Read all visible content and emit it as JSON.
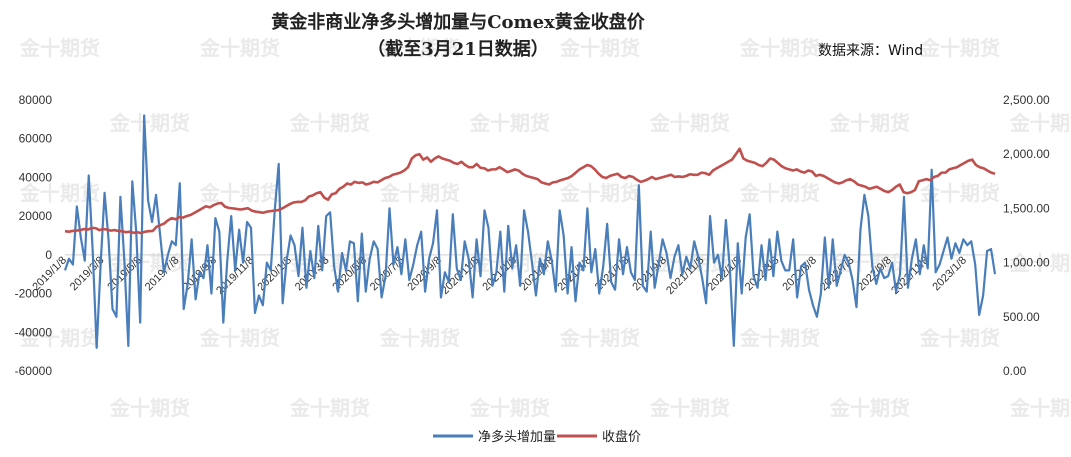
{
  "chart_data": {
    "type": "line",
    "title": "黄金非商业净多头增加量与Comex黄金收盘价",
    "subtitle": "（截至3月21日数据）",
    "source": "数据来源：Wind",
    "watermark": "金十期货",
    "y_left": {
      "min": -60000,
      "max": 80000,
      "step": 20000,
      "ticks": [
        "80000",
        "60000",
        "40000",
        "20000",
        "0",
        "-20000",
        "-40000",
        "-60000"
      ]
    },
    "y_right": {
      "min": 0,
      "max": 2500,
      "step": 500,
      "ticks": [
        "2,500.00",
        "2,000.00",
        "1,500.00",
        "1,000.00",
        "500.00",
        "0.00"
      ]
    },
    "x_ticks": [
      "2019/1/8",
      "2019/3/8",
      "2019/5/8",
      "2019/7/8",
      "2019/9/8",
      "2019/11/8",
      "2020/1/8",
      "2020/3/8",
      "2020/5/8",
      "2020/7/8",
      "2020/9/8",
      "2020/11/8",
      "2021/1/8",
      "2021/3/8",
      "2021/5/8",
      "2021/7/8",
      "2021/9/8",
      "2021/11/8",
      "2022/1/8",
      "2022/3/8",
      "2022/5/8",
      "2022/7/8",
      "2022/9/8",
      "2022/11/8",
      "2023/1/8"
    ],
    "legend_position": "bottom",
    "grid": false,
    "series": [
      {
        "name": "净多头增加量",
        "axis": "left",
        "color": "#4a7ebb",
        "values": [
          -8000,
          -2000,
          -5000,
          25000,
          9000,
          -3000,
          41000,
          2000,
          -48000,
          -5000,
          32000,
          8000,
          -28000,
          -32000,
          30000,
          -3000,
          -47000,
          38000,
          12000,
          -35000,
          72000,
          28000,
          17000,
          31000,
          11000,
          -9000,
          0,
          7000,
          5000,
          37000,
          -28000,
          -15000,
          8000,
          -23000,
          -9000,
          -12000,
          5000,
          -20000,
          19000,
          12000,
          -35000,
          -3000,
          20000,
          -8000,
          13000,
          -4000,
          17000,
          14000,
          -30000,
          -21000,
          -26000,
          -4000,
          -8000,
          23000,
          47000,
          -25000,
          -3000,
          10000,
          5000,
          -11000,
          14000,
          -17000,
          2000,
          -12000,
          15000,
          -8000,
          20000,
          22000,
          -6000,
          -19000,
          1000,
          -8000,
          7000,
          6000,
          -24000,
          11000,
          -19000,
          -2000,
          7000,
          3000,
          -22000,
          -11000,
          24000,
          -5000,
          4000,
          -10000,
          8000,
          -13000,
          -5000,
          5000,
          12000,
          -19000,
          -2000,
          6000,
          23000,
          -22000,
          -9000,
          -14000,
          21000,
          -7000,
          -13000,
          7000,
          -2000,
          -22000,
          8000,
          -11000,
          23000,
          14000,
          -16000,
          -9000,
          12000,
          -19000,
          15000,
          -7000,
          5000,
          -16000,
          23000,
          12000,
          -4000,
          -21000,
          -2000,
          -10000,
          7000,
          -3000,
          -19000,
          23000,
          10000,
          -20000,
          4000,
          -24000,
          -4000,
          -8000,
          24000,
          -9000,
          3000,
          -20000,
          -6000,
          16000,
          -14000,
          -18000,
          8000,
          -10000,
          4000,
          -9000,
          -13000,
          36000,
          -16000,
          -19000,
          12000,
          -17000,
          -5000,
          8000,
          1000,
          -12000,
          -1000,
          5000,
          -10000,
          -1000,
          -7000,
          7000,
          -1000,
          -12000,
          -25000,
          20000,
          -4000,
          0,
          -12000,
          18000,
          -7000,
          -47000,
          6000,
          -20000,
          9000,
          21000,
          -11000,
          -17000,
          5000,
          -13000,
          8000,
          -11000,
          12000,
          -3000,
          -8000,
          -8000,
          8000,
          -22000,
          -6000,
          -4000,
          -18000,
          -26000,
          -32000,
          -20000,
          9000,
          -17000,
          8000,
          -16000,
          -8000,
          0,
          -4000,
          -13000,
          -27000,
          13000,
          31000,
          20000,
          -6000,
          -15000,
          -7000,
          -12000,
          -11000,
          -4000,
          -19000,
          -10000,
          30000,
          -17000,
          -2000,
          8000,
          -10000,
          5000,
          -7000,
          44000,
          -9000,
          -5000,
          2000,
          9000,
          -2000,
          6000,
          1000,
          8000,
          5000,
          7000,
          -5000,
          -31000,
          -21000,
          2000,
          3000,
          -10000
        ]
      },
      {
        "name": "收盘价",
        "axis": "right",
        "color": "#c0504d",
        "values": [
          1290,
          1285,
          1292,
          1295,
          1300,
          1310,
          1305,
          1320,
          1318,
          1300,
          1310,
          1305,
          1295,
          1300,
          1292,
          1290,
          1280,
          1285,
          1275,
          1280,
          1272,
          1285,
          1290,
          1292,
          1330,
          1345,
          1360,
          1390,
          1410,
          1400,
          1420,
          1415,
          1430,
          1440,
          1460,
          1480,
          1500,
          1520,
          1510,
          1530,
          1545,
          1550,
          1515,
          1505,
          1500,
          1495,
          1490,
          1495,
          1502,
          1480,
          1470,
          1465,
          1460,
          1470,
          1475,
          1480,
          1485,
          1500,
          1520,
          1540,
          1555,
          1560,
          1560,
          1575,
          1610,
          1620,
          1640,
          1650,
          1600,
          1580,
          1630,
          1640,
          1680,
          1700,
          1730,
          1720,
          1745,
          1735,
          1740,
          1720,
          1730,
          1745,
          1740,
          1760,
          1780,
          1790,
          1810,
          1820,
          1830,
          1850,
          1880,
          1960,
          1990,
          2000,
          1950,
          1970,
          1930,
          1960,
          1980,
          1960,
          1950,
          1940,
          1920,
          1910,
          1930,
          1900,
          1880,
          1880,
          1910,
          1875,
          1870,
          1850,
          1860,
          1860,
          1880,
          1860,
          1835,
          1845,
          1860,
          1850,
          1820,
          1800,
          1790,
          1780,
          1770,
          1740,
          1730,
          1720,
          1740,
          1745,
          1760,
          1770,
          1780,
          1800,
          1830,
          1860,
          1880,
          1900,
          1890,
          1860,
          1820,
          1790,
          1780,
          1800,
          1810,
          1820,
          1790,
          1780,
          1800,
          1790,
          1765,
          1745,
          1755,
          1770,
          1790,
          1770,
          1780,
          1790,
          1800,
          1810,
          1790,
          1795,
          1790,
          1800,
          1815,
          1810,
          1810,
          1830,
          1825,
          1810,
          1850,
          1870,
          1890,
          1910,
          1930,
          1950,
          2000,
          2050,
          1960,
          1940,
          1930,
          1920,
          1900,
          1890,
          1920,
          1960,
          1950,
          1920,
          1890,
          1870,
          1860,
          1850,
          1860,
          1840,
          1830,
          1850,
          1840,
          1800,
          1810,
          1800,
          1780,
          1760,
          1740,
          1730,
          1740,
          1760,
          1770,
          1750,
          1720,
          1710,
          1700,
          1680,
          1690,
          1700,
          1680,
          1660,
          1650,
          1670,
          1700,
          1720,
          1650,
          1640,
          1650,
          1670,
          1750,
          1760,
          1770,
          1760,
          1790,
          1800,
          1830,
          1830,
          1860,
          1870,
          1880,
          1900,
          1920,
          1940,
          1950,
          1900,
          1880,
          1870,
          1850,
          1830,
          1820
        ]
      }
    ]
  }
}
